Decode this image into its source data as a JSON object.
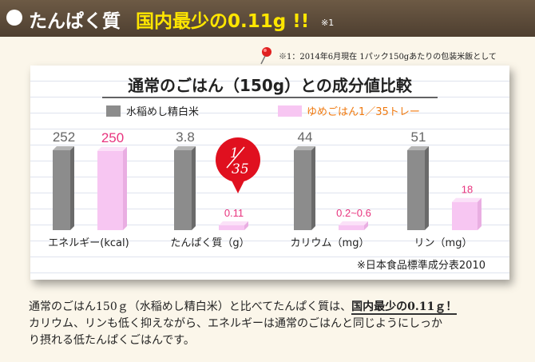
{
  "header": {
    "title": "たんぱく質",
    "highlight": "国内最少の0.11g !!",
    "footnote_mark": "※1"
  },
  "footnote": "※1：2014年6月現在 1パック150gあたりの包装米飯として",
  "chart_data": {
    "type": "bar",
    "title": "通常のごはん（150g）との成分値比較",
    "categories": [
      "エネルギー(kcal)",
      "たんぱく質（g）",
      "カリウム（mg）",
      "リン（mg）"
    ],
    "series": [
      {
        "name": "水稲めし精白米",
        "color": "#8c8c8c",
        "labels": [
          "252",
          "3.8",
          "44",
          "51"
        ],
        "values": [
          252,
          3.8,
          44,
          51
        ]
      },
      {
        "name": "ゆめごはん1／35トレー",
        "color": "#f7c6f2",
        "labels": [
          "250",
          "0.11",
          "0.2~0.6",
          "18"
        ],
        "values": [
          250,
          0.11,
          0.6,
          18
        ]
      }
    ],
    "callout": {
      "numerator": "1",
      "denominator": "35"
    },
    "source": "※日本食品標準成分表2010",
    "label_colors": {
      "gray": "#666666",
      "pink": "#e8347e"
    }
  },
  "description": {
    "line1_before": "通常のごはん150ｇ（水稲めし精白米）と比べてたんぱく質は、",
    "line1_highlight": "国内最少の0.11ｇ！",
    "line2": "カリウム、リンも低く抑えながら、エネルギーは通常のごはんと同じようにしっか",
    "line3": "り摂れる低たんぱくごはんです。"
  }
}
